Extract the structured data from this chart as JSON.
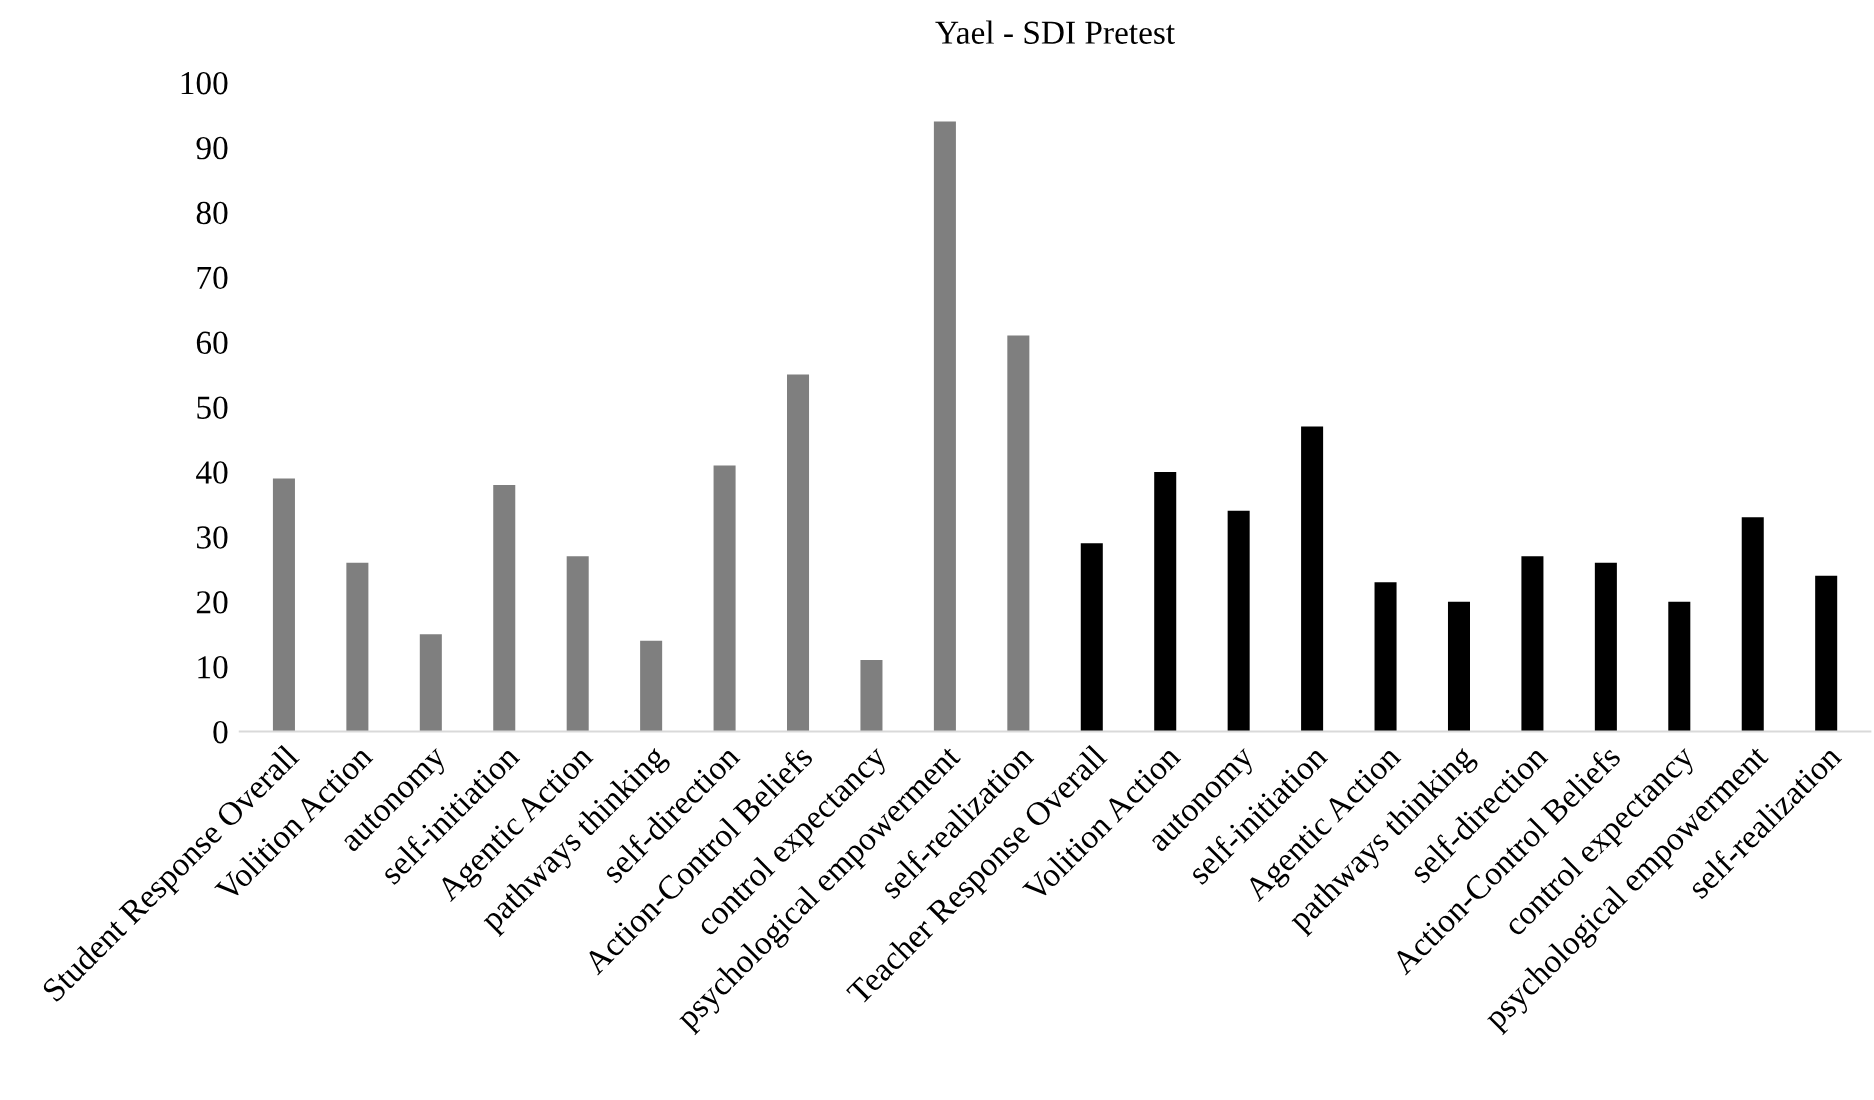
{
  "chart_data": {
    "type": "bar",
    "title": "Yael - SDI Pretest",
    "categories": [
      "Student Response Overall",
      "Volition Action",
      "autonomy",
      "self-initiation",
      "Agentic Action",
      "pathways thinking",
      "self-direction",
      "Action-Control Beliefs",
      "control expectancy",
      "psychological empowerment",
      "self-realization",
      "Teacher Response Overall",
      "Volition Action",
      "autonomy",
      "self-initiation",
      "Agentic Action",
      "pathways thinking",
      "self-direction",
      "Action-Control Beliefs",
      "control expectancy",
      "psychological empowerment",
      "self-realization"
    ],
    "values": [
      39,
      26,
      15,
      38,
      27,
      14,
      41,
      55,
      11,
      94,
      61,
      29,
      40,
      34,
      47,
      23,
      20,
      27,
      26,
      20,
      33,
      24
    ],
    "colors": [
      "#7f7f7f",
      "#7f7f7f",
      "#7f7f7f",
      "#7f7f7f",
      "#7f7f7f",
      "#7f7f7f",
      "#7f7f7f",
      "#7f7f7f",
      "#7f7f7f",
      "#7f7f7f",
      "#7f7f7f",
      "#000000",
      "#000000",
      "#000000",
      "#000000",
      "#000000",
      "#000000",
      "#000000",
      "#000000",
      "#000000",
      "#000000",
      "#000000"
    ],
    "ylim": [
      0,
      100
    ],
    "yticks": [
      0,
      10,
      20,
      30,
      40,
      50,
      60,
      70,
      80,
      90,
      100
    ],
    "grid": false,
    "legend": false
  }
}
